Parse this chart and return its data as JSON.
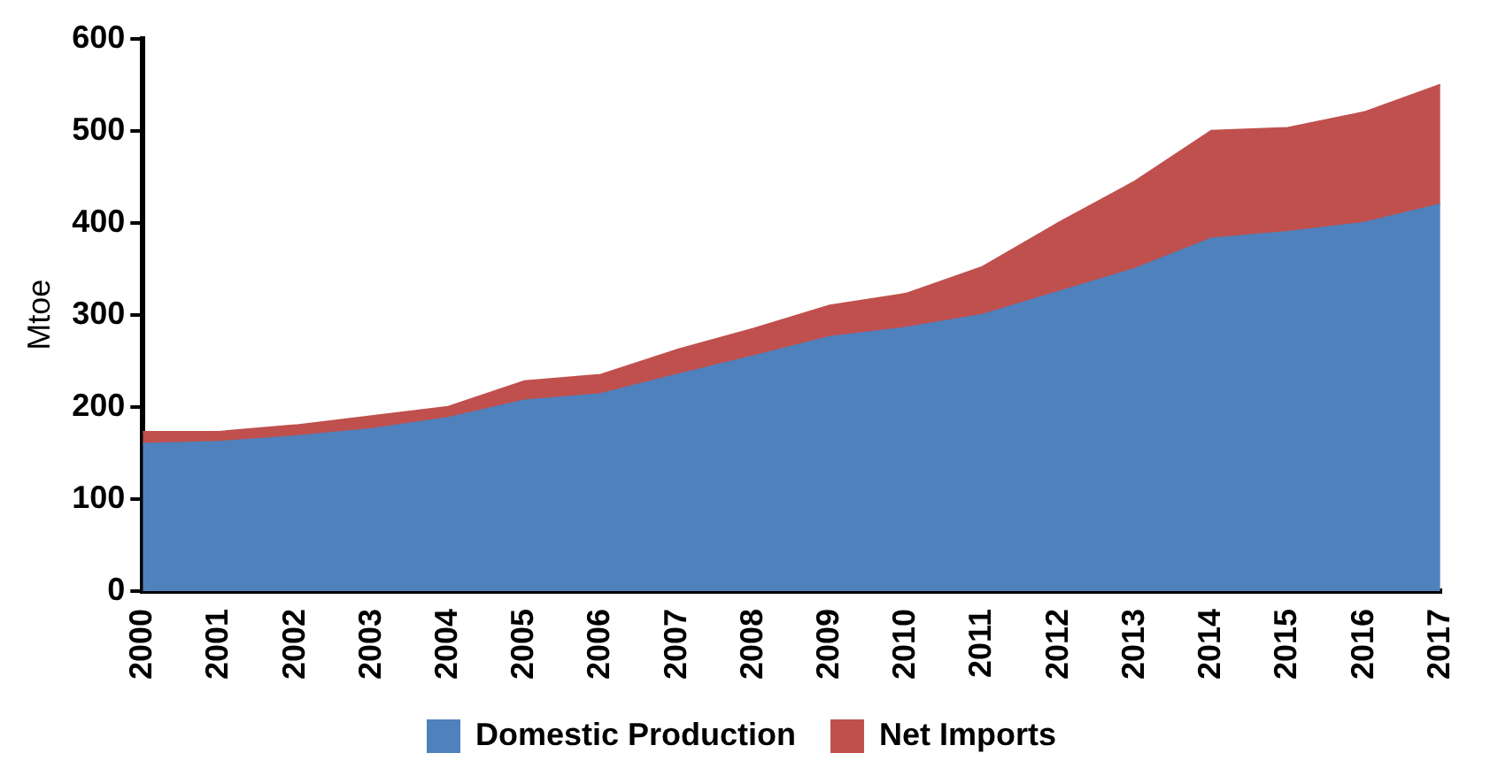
{
  "chart_data": {
    "type": "area",
    "stacked": true,
    "ylabel": "Mtoe",
    "categories": [
      "2000",
      "2001",
      "2002",
      "2003",
      "2004",
      "2005",
      "2006",
      "2007",
      "2008",
      "2009",
      "2010",
      "2011",
      "2012",
      "2013",
      "2014",
      "2015",
      "2016",
      "2017"
    ],
    "series": [
      {
        "name": "Domestic Production",
        "color": "#4f81bd",
        "values": [
          160,
          162,
          168,
          176,
          188,
          207,
          214,
          235,
          255,
          276,
          286,
          300,
          325,
          350,
          383,
          390,
          400,
          420
        ]
      },
      {
        "name": "Net Imports",
        "color": "#c0504d",
        "values": [
          13,
          11,
          12,
          14,
          12,
          21,
          21,
          27,
          30,
          34,
          37,
          52,
          75,
          95,
          117,
          113,
          120,
          130
        ]
      }
    ],
    "ylim": [
      0,
      600
    ],
    "yticks": [
      0,
      100,
      200,
      300,
      400,
      500,
      600
    ],
    "grid": false,
    "legend": "bottom"
  }
}
